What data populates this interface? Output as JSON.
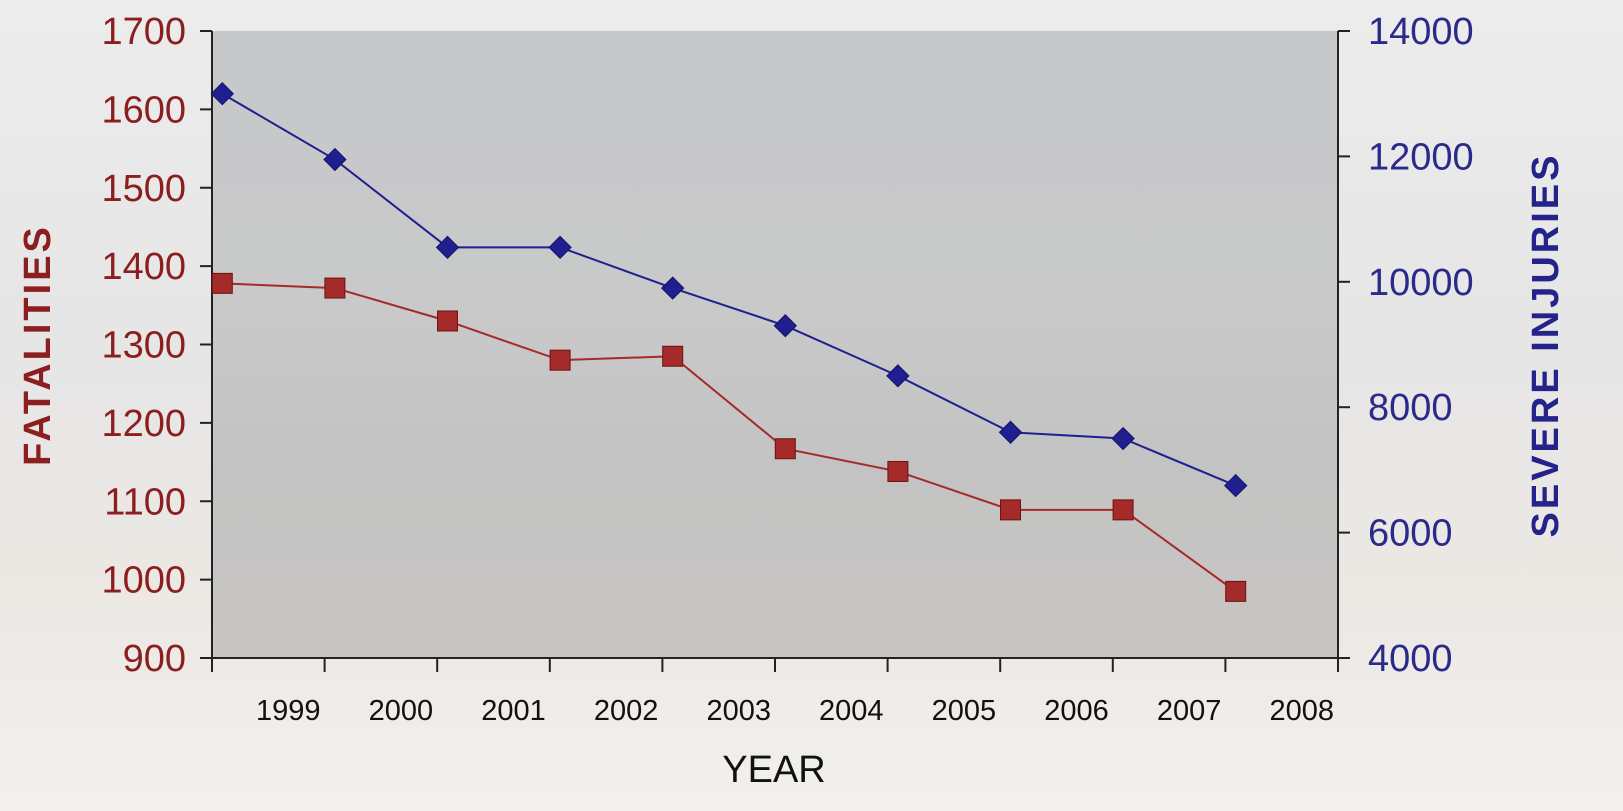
{
  "chart_data": {
    "type": "line",
    "title": "",
    "xlabel": "YEAR",
    "categories": [
      "1999",
      "2000",
      "2001",
      "2002",
      "2003",
      "2004",
      "2005",
      "2006",
      "2007",
      "2008"
    ],
    "left_axis": {
      "label": "FATALITIES",
      "ylim": [
        900,
        1700
      ],
      "ticks": [
        "1700",
        "1600",
        "1500",
        "1400",
        "1300",
        "1200",
        "1100",
        "1000",
        "900"
      ]
    },
    "right_axis": {
      "label": "SEVERE INJURIES",
      "ylim": [
        4000,
        14000
      ],
      "ticks": [
        "14000",
        "12000",
        "10000",
        "8000",
        "6000",
        "4000"
      ]
    },
    "series": [
      {
        "axis": "left",
        "color": "#a52a2a",
        "marker": "square",
        "values": [
          1378,
          1372,
          1330,
          1280,
          1285,
          1167,
          1138,
          1089,
          1089,
          985
        ]
      },
      {
        "axis": "right",
        "color": "#1f1f8f",
        "marker": "diamond",
        "values": [
          13000,
          11950,
          10550,
          10550,
          9900,
          9300,
          8500,
          7600,
          7500,
          6750
        ]
      }
    ],
    "grid": false,
    "legend": "none"
  }
}
